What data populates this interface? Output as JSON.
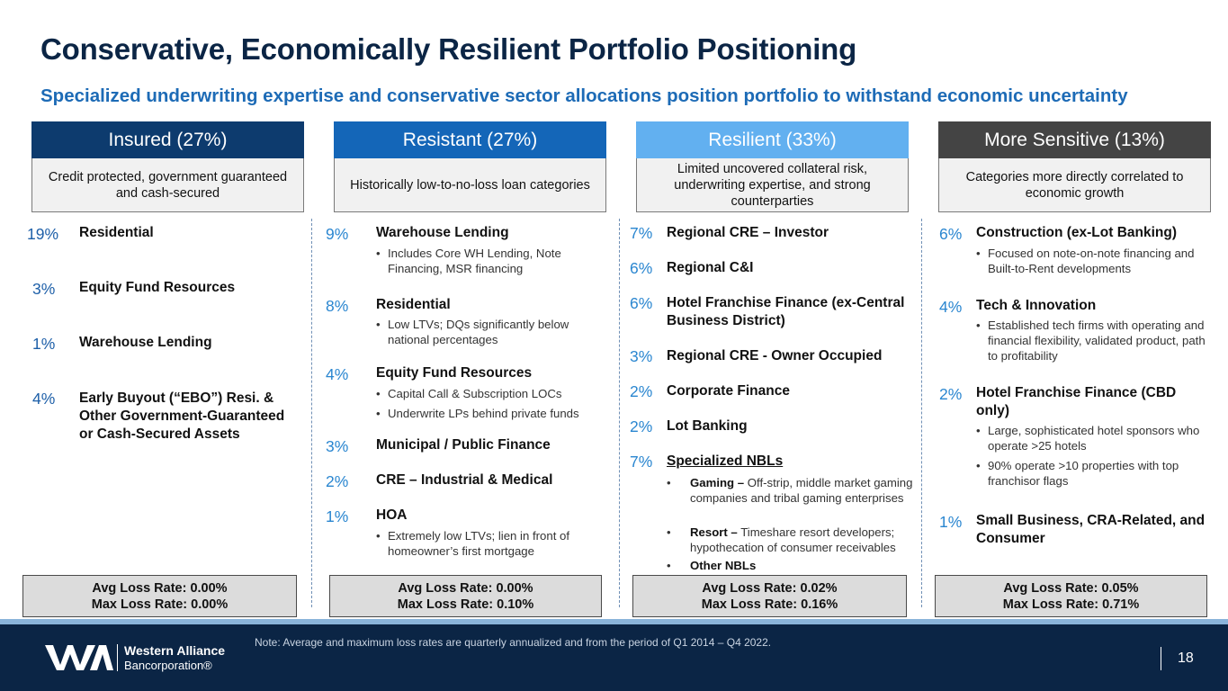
{
  "title": "Conservative, Economically Resilient Portfolio Positioning",
  "subtitle": "Specialized underwriting expertise and conservative sector allocations position portfolio to withstand economic uncertainty",
  "colors": {
    "insured": "#0d3b6e",
    "resistant": "#1466b8",
    "resilient": "#62b0f0",
    "sensitive": "#444444",
    "pct_insured": "#1d5fa8",
    "pct_other": "#2a86d0"
  },
  "columns": [
    {
      "header": "Insured (27%)",
      "desc": "Credit protected, government guaranteed and cash-secured",
      "items": [
        {
          "pct": "19%",
          "label": "Residential",
          "bullets": []
        },
        {
          "pct": "3%",
          "label": "Equity Fund Resources",
          "bullets": []
        },
        {
          "pct": "1%",
          "label": "Warehouse Lending",
          "bullets": []
        },
        {
          "pct": "4%",
          "label": "Early Buyout (“EBO”) Resi. & Other Government-Guaranteed or Cash-Secured Assets",
          "bullets": []
        }
      ],
      "avg": "Avg Loss Rate: 0.00%",
      "max": "Max Loss Rate: 0.00%"
    },
    {
      "header": "Resistant (27%)",
      "desc": "Historically low-to-no-loss loan categories",
      "items": [
        {
          "pct": "9%",
          "label": "Warehouse Lending",
          "bullets": [
            "Includes Core WH Lending, Note Financing, MSR financing"
          ]
        },
        {
          "pct": "8%",
          "label": "Residential",
          "bullets": [
            "Low LTVs; DQs significantly below national percentages"
          ]
        },
        {
          "pct": "4%",
          "label": "Equity Fund Resources",
          "bullets": [
            "Capital Call & Subscription LOCs",
            "Underwrite LPs behind private funds"
          ]
        },
        {
          "pct": "3%",
          "label": "Municipal / Public Finance",
          "bullets": []
        },
        {
          "pct": "2%",
          "label": "CRE – Industrial & Medical",
          "bullets": []
        },
        {
          "pct": "1%",
          "label": "HOA",
          "bullets": [
            "Extremely low LTVs; lien in front of homeowner’s first mortgage"
          ]
        }
      ],
      "avg": "Avg Loss Rate: 0.00%",
      "max": "Max Loss Rate: 0.10%"
    },
    {
      "header": "Resilient (33%)",
      "desc": "Limited uncovered collateral risk, underwriting expertise, and strong counterparties",
      "items": [
        {
          "pct": "7%",
          "label": "Regional CRE – Investor",
          "bullets": []
        },
        {
          "pct": "6%",
          "label": "Regional C&I",
          "bullets": []
        },
        {
          "pct": "6%",
          "label": "Hotel Franchise Finance (ex-Central Business District)",
          "bullets": []
        },
        {
          "pct": "3%",
          "label": "Regional CRE - Owner Occupied",
          "bullets": []
        },
        {
          "pct": "2%",
          "label": "Corporate Finance",
          "bullets": []
        },
        {
          "pct": "2%",
          "label": "Lot Banking",
          "bullets": []
        },
        {
          "pct": "7%",
          "label": "Specialized NBLs",
          "bullets": [
            {
              "bold": "Gaming –",
              "text": " Off-strip, middle market gaming companies and tribal gaming enterprises"
            },
            {
              "bold": "Resort –",
              "text": " Timeshare resort developers; hypothecation of consumer receivables"
            },
            {
              "bold": "Other NBLs",
              "text": ""
            }
          ]
        }
      ],
      "avg": "Avg Loss Rate: 0.02%",
      "max": "Max Loss Rate: 0.16%"
    },
    {
      "header": "More Sensitive (13%)",
      "desc": "Categories more directly correlated to economic growth",
      "items": [
        {
          "pct": "6%",
          "label": "Construction (ex-Lot Banking)",
          "bullets": [
            "Focused on note-on-note financing and Built-to-Rent developments"
          ]
        },
        {
          "pct": "4%",
          "label": "Tech & Innovation",
          "bullets": [
            "Established tech firms with operating and financial flexibility, validated product, path to profitability"
          ]
        },
        {
          "pct": "2%",
          "label": "Hotel Franchise Finance (CBD only)",
          "bullets": [
            "Large, sophisticated hotel sponsors who operate >25 hotels",
            "90% operate >10 properties with top franchisor flags"
          ]
        },
        {
          "pct": "1%",
          "label": "Small Business, CRA-Related, and Consumer",
          "bullets": []
        }
      ],
      "avg": "Avg Loss Rate: 0.05%",
      "max": "Max Loss Rate: 0.71%"
    }
  ],
  "footer": {
    "note": "Note: Average and maximum loss rates are quarterly annualized and from the period of Q1 2014 – Q4 2022.",
    "brand_line1": "Western Alliance",
    "brand_line2": "Bancorporation®",
    "logo_text": "WA",
    "page": "18"
  }
}
